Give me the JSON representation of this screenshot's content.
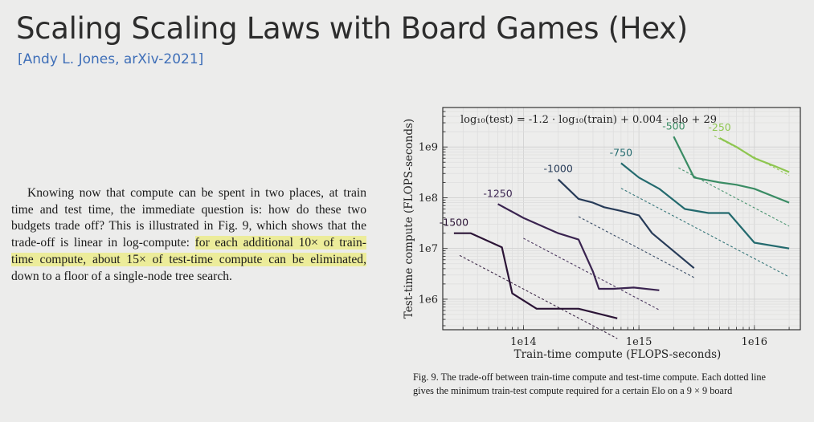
{
  "slide": {
    "title": "Scaling Scaling Laws with Board Games (Hex)",
    "citation": "[Andy L. Jones, arXiv-2021]",
    "paragraph": {
      "before": "Knowing now that compute can be spent in two places, at train time and test time, the immediate question is: how do these two budgets trade off? This is illustrated in Fig. 9, which shows that the trade-off is linear in log-compute: ",
      "highlighted": "for each additional 10× of train-time compute, about 15× of test-time compute can be eliminated,",
      "after": " down to a floor of a single-node tree search."
    },
    "caption": "Fig. 9.  The trade-off between train-time compute and test-time compute. Each dotted line gives the minimum train-test compute required for a certain Elo on a 9 × 9 board",
    "highlight_color": "#ecec9a"
  },
  "chart_data": {
    "type": "line",
    "xlabel": "Train-time compute (FLOPS-seconds)",
    "ylabel": "Test-time compute (FLOPS-seconds)",
    "x_scale": "log",
    "y_scale": "log",
    "xlim": [
      20000000000000.0,
      2.5e+16
    ],
    "ylim": [
      250000.0,
      6000000000.0
    ],
    "x_ticks": [
      {
        "value": 100000000000000.0,
        "label": "1e14"
      },
      {
        "value": 1000000000000000.0,
        "label": "1e15"
      },
      {
        "value": 1e+16,
        "label": "1e16"
      }
    ],
    "y_ticks": [
      {
        "value": 1000000.0,
        "label": "1e6"
      },
      {
        "value": 10000000.0,
        "label": "1e7"
      },
      {
        "value": 100000000.0,
        "label": "1e8"
      },
      {
        "value": 1000000000.0,
        "label": "1e9"
      }
    ],
    "grid": true,
    "annotation": "log₁₀(test) = -1.2 · log₁₀(train) + 0.004 · elo + 29",
    "fit": {
      "slope": -1.2,
      "elo_coef": 0.004,
      "intercept": 29
    },
    "series": [
      {
        "name": "-1500",
        "color": "#2b1436",
        "x": [
          25000000000000.0,
          35000000000000.0,
          65000000000000.0,
          80000000000000.0,
          130000000000000.0,
          200000000000000.0,
          300000000000000.0,
          650000000000000.0
        ],
        "y": [
          20000000.0,
          20000000.0,
          10500000.0,
          1300000.0,
          650000.0,
          650000.0,
          650000.0,
          420000.0
        ],
        "fit_x": [
          28000000000000.0,
          650000000000000.0
        ]
      },
      {
        "name": "-1250",
        "color": "#3a2450",
        "x": [
          60000000000000.0,
          100000000000000.0,
          200000000000000.0,
          300000000000000.0,
          400000000000000.0,
          450000000000000.0,
          600000000000000.0,
          900000000000000.0,
          1500000000000000.0
        ],
        "y": [
          75000000.0,
          40000000.0,
          20000000.0,
          15000000.0,
          3500000.0,
          1600000.0,
          1600000.0,
          1700000.0,
          1500000.0
        ],
        "fit_x": [
          100000000000000.0,
          1500000000000000.0
        ]
      },
      {
        "name": "-1000",
        "color": "#273b58",
        "x": [
          200000000000000.0,
          300000000000000.0,
          400000000000000.0,
          500000000000000.0,
          700000000000000.0,
          1000000000000000.0,
          1300000000000000.0,
          3000000000000000.0
        ],
        "y": [
          230000000.0,
          95000000.0,
          80000000.0,
          65000000.0,
          55000000.0,
          45000000.0,
          20000000.0,
          4100000.0
        ],
        "fit_x": [
          300000000000000.0,
          3000000000000000.0
        ]
      },
      {
        "name": "-750",
        "color": "#236a6e",
        "x": [
          700000000000000.0,
          1000000000000000.0,
          1500000000000000.0,
          2500000000000000.0,
          4000000000000000.0,
          6000000000000000.0,
          1e+16,
          2e+16
        ],
        "y": [
          480000000.0,
          250000000.0,
          150000000.0,
          60000000.0,
          50000000.0,
          50000000.0,
          13000000.0,
          10000000.0
        ],
        "fit_x": [
          700000000000000.0,
          2e+16
        ]
      },
      {
        "name": "-500",
        "color": "#3a8c64",
        "x": [
          2000000000000000.0,
          3000000000000000.0,
          5000000000000000.0,
          7000000000000000.0,
          1e+16,
          2e+16
        ],
        "y": [
          1600000000.0,
          250000000.0,
          200000000.0,
          180000000.0,
          150000000.0,
          80000000.0
        ],
        "fit_x": [
          2200000000000000.0,
          2e+16
        ]
      },
      {
        "name": "-250",
        "color": "#8ec650",
        "x": [
          5000000000000000.0,
          7000000000000000.0,
          1e+16,
          1.5e+16,
          2e+16
        ],
        "y": [
          1500000000.0,
          1000000000.0,
          600000000.0,
          420000000.0,
          320000000.0
        ],
        "fit_x": [
          4500000000000000.0,
          2e+16
        ]
      }
    ]
  }
}
